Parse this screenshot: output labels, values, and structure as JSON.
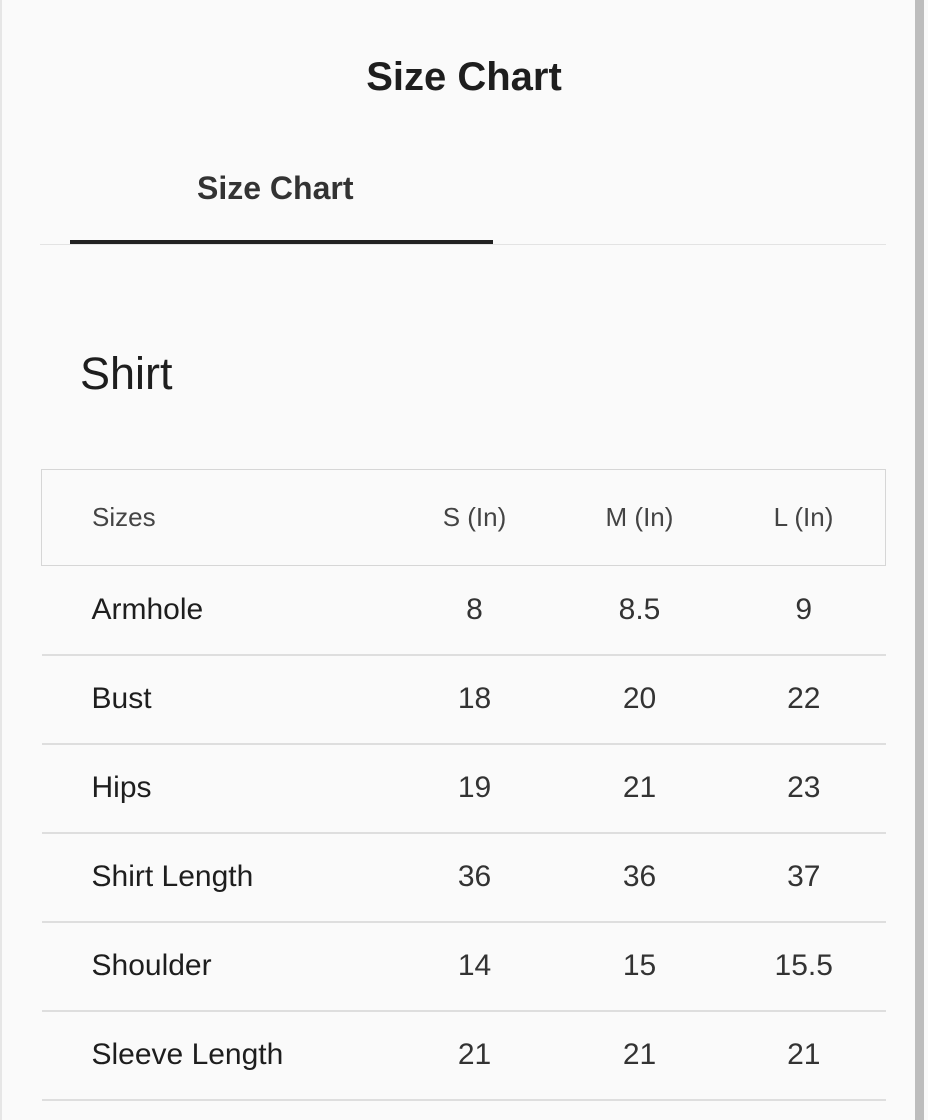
{
  "modal": {
    "title": "Size Chart"
  },
  "tabs": [
    {
      "label": "Size Chart",
      "active": true
    }
  ],
  "section": {
    "title": "Shirt"
  },
  "table": {
    "headers": [
      "Sizes",
      "S (In)",
      "M (In)",
      "L (In)"
    ],
    "rows": [
      [
        "Armhole",
        "8",
        "8.5",
        "9"
      ],
      [
        "Bust",
        "18",
        "20",
        "22"
      ],
      [
        "Hips",
        "19",
        "21",
        "23"
      ],
      [
        "Shirt Length",
        "36",
        "36",
        "37"
      ],
      [
        "Shoulder",
        "14",
        "15",
        "15.5"
      ],
      [
        "Sleeve Length",
        "21",
        "21",
        "21"
      ]
    ]
  }
}
